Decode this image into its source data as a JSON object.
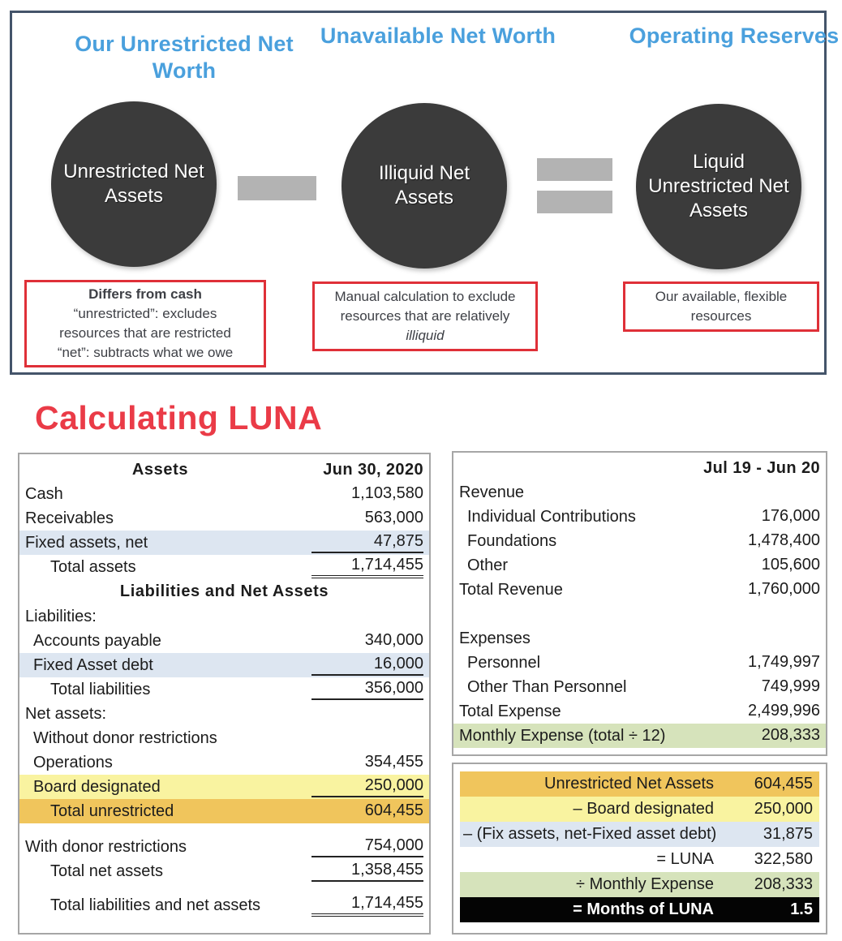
{
  "colors": {
    "accent_blue": "#4aa0dd",
    "panel_border": "#44546a",
    "circle_fill": "#3b3b3b",
    "operator_gray": "#b3b3b3",
    "note_border_red": "#df3038",
    "title_red": "#ea3b47",
    "highlight_blue": "#dde6f1",
    "highlight_yellow": "#f9f3a0",
    "highlight_gold": "#f0c55c",
    "highlight_green": "#d6e3bb",
    "highlight_black": "#040404"
  },
  "diagram": {
    "headings": [
      {
        "text": "Our Unrestricted Net Worth"
      },
      {
        "text": "Unavailable Net Worth"
      },
      {
        "text": "Operating Reserves"
      }
    ],
    "circles": [
      {
        "label": "Unrestricted Net Assets"
      },
      {
        "label": "Illiquid Net Assets"
      },
      {
        "label": "Liquid Unrestricted Net Assets"
      }
    ],
    "operators": {
      "minus": "−",
      "equals": "="
    },
    "notes": [
      {
        "title": "Differs from cash",
        "line1": "“unrestricted”: excludes",
        "line2": "resources that are restricted",
        "line3": "“net”: subtracts what we owe"
      },
      {
        "line1": "Manual calculation to exclude",
        "line2": "resources that are relatively",
        "italic": "illiquid"
      },
      {
        "line1": "Our available, flexible",
        "line2": "resources"
      }
    ]
  },
  "section_title": "Calculating LUNA",
  "balance_sheet": {
    "header": {
      "title": "Assets",
      "date": "Jun 30, 2020"
    },
    "section2": "Liabilities and Net Assets",
    "rows": [
      {
        "label": "Cash",
        "value": "1,103,580"
      },
      {
        "label": "Receivables",
        "value": "563,000"
      },
      {
        "label": "Fixed assets, net",
        "value": "47,875"
      },
      {
        "label": "Total assets",
        "value": "1,714,455"
      },
      {
        "label": "Liabilities:",
        "value": ""
      },
      {
        "label": "Accounts payable",
        "value": "340,000"
      },
      {
        "label": "Fixed Asset debt",
        "value": "16,000"
      },
      {
        "label": "Total liabilities",
        "value": "356,000"
      },
      {
        "label": "Net assets:",
        "value": ""
      },
      {
        "label": "Without donor restrictions",
        "value": ""
      },
      {
        "label": "Operations",
        "value": "354,455"
      },
      {
        "label": "Board designated",
        "value": "250,000"
      },
      {
        "label": "Total unrestricted",
        "value": "604,455"
      },
      {
        "label": "With donor restrictions",
        "value": "754,000"
      },
      {
        "label": "Total net assets",
        "value": "1,358,455"
      },
      {
        "label": "Total liabilities and net assets",
        "value": "1,714,455"
      }
    ]
  },
  "income_statement": {
    "header": {
      "period": "Jul 19 - Jun 20"
    },
    "rows": [
      {
        "label": "Revenue",
        "value": ""
      },
      {
        "label": "Individual Contributions",
        "value": "176,000"
      },
      {
        "label": "Foundations",
        "value": "1,478,400"
      },
      {
        "label": "Other",
        "value": "105,600"
      },
      {
        "label": "Total Revenue",
        "value": "1,760,000"
      },
      {
        "label": "Expenses",
        "value": ""
      },
      {
        "label": "Personnel",
        "value": "1,749,997"
      },
      {
        "label": "Other Than Personnel",
        "value": "749,999"
      },
      {
        "label": "Total Expense",
        "value": "2,499,996"
      },
      {
        "label": "Monthly Expense (total ÷ 12)",
        "value": "208,333"
      }
    ]
  },
  "luna_calc": {
    "rows": [
      {
        "label": "Unrestricted Net Assets",
        "value": "604,455"
      },
      {
        "label": "– Board designated",
        "value": "250,000"
      },
      {
        "label": "– (Fix assets, net-Fixed asset debt)",
        "value": "31,875"
      },
      {
        "label": "= LUNA",
        "value": "322,580"
      },
      {
        "label": "÷ Monthly Expense",
        "value": "208,333"
      },
      {
        "label": "= Months of LUNA",
        "value": "1.5"
      }
    ]
  }
}
